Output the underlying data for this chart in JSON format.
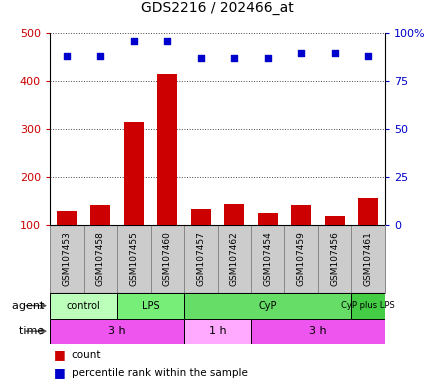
{
  "title": "GDS2216 / 202466_at",
  "samples": [
    "GSM107453",
    "GSM107458",
    "GSM107455",
    "GSM107460",
    "GSM107457",
    "GSM107462",
    "GSM107454",
    "GSM107459",
    "GSM107456",
    "GSM107461"
  ],
  "counts": [
    130,
    142,
    315,
    415,
    135,
    145,
    125,
    142,
    120,
    157
  ],
  "percentile_ranks": [
    88,
    88,
    96,
    96,
    87,
    87,
    87,
    90,
    90,
    88
  ],
  "ylim_left": [
    100,
    500
  ],
  "ylim_right": [
    0,
    100
  ],
  "yticks_left": [
    100,
    200,
    300,
    400,
    500
  ],
  "yticks_right": [
    0,
    25,
    50,
    75,
    100
  ],
  "yticklabels_right": [
    "0",
    "25",
    "50",
    "75",
    "100%"
  ],
  "bar_color": "#cc0000",
  "dot_color": "#0000cc",
  "agent_groups": [
    {
      "label": "control",
      "start": 0,
      "end": 2,
      "color": "#bbffbb"
    },
    {
      "label": "LPS",
      "start": 2,
      "end": 4,
      "color": "#77ee77"
    },
    {
      "label": "CyP",
      "start": 4,
      "end": 9,
      "color": "#66dd66"
    },
    {
      "label": "CyP plus LPS",
      "start": 9,
      "end": 10,
      "color": "#44cc44"
    }
  ],
  "time_groups": [
    {
      "label": "3 h",
      "start": 0,
      "end": 4,
      "color": "#ee55ee"
    },
    {
      "label": "1 h",
      "start": 4,
      "end": 6,
      "color": "#ffaaff"
    },
    {
      "label": "3 h",
      "start": 6,
      "end": 10,
      "color": "#ee55ee"
    }
  ],
  "bar_color_dark": "#990000",
  "dot_color_blue": "#0000cc",
  "tick_color_left": "#cc0000",
  "tick_color_right": "#0000cc",
  "sample_box_color": "#cccccc",
  "sample_box_edge": "#888888",
  "grid_linestyle": "dotted",
  "grid_color": "#444444"
}
